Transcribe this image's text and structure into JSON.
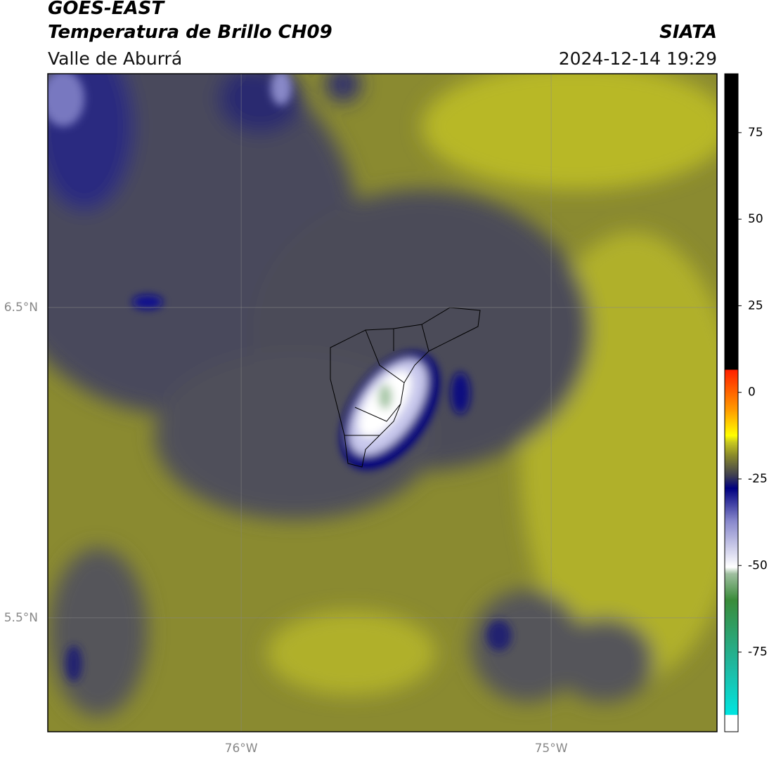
{
  "header": {
    "title": "GOES-EAST",
    "subtitle": "Temperatura de Brillo CH09",
    "source": "SIATA",
    "region": "Valle de Aburrá",
    "datetime": "2024-12-14 19:29"
  },
  "map": {
    "xlim": [
      -76.624,
      -74.465
    ],
    "ylim": [
      5.133,
      7.253
    ],
    "xticks": [
      {
        "value": -76,
        "label": "76°W"
      },
      {
        "value": -75,
        "label": "75°W"
      }
    ],
    "yticks": [
      {
        "value": 6.5,
        "label": "6.5°N"
      },
      {
        "value": 5.5,
        "label": "5.5°N"
      }
    ]
  },
  "colorbar": {
    "lim": [
      -98,
      92
    ],
    "ticks": [
      75,
      50,
      25,
      0,
      -25,
      -50,
      -75
    ]
  }
}
